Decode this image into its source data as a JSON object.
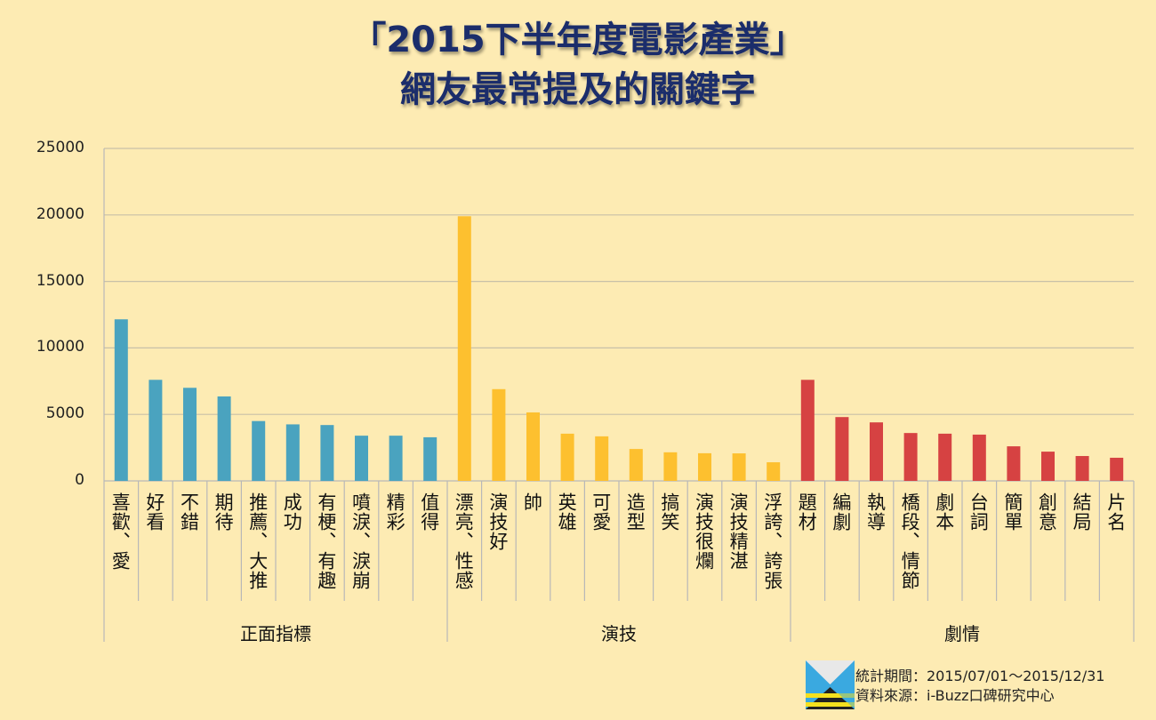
{
  "title_line1": "「2015下半年度電影產業」",
  "title_line2": "網友最常提及的關鍵字",
  "chart_data": {
    "type": "bar",
    "title": "「2015下半年度電影產業」網友最常提及的關鍵字",
    "ylim": [
      0,
      25000
    ],
    "yticks": [
      "0",
      "5000",
      "10000",
      "15000",
      "20000",
      "25000"
    ],
    "grid": true,
    "groups": [
      {
        "name": "正面指標",
        "color": "#4aa3bf",
        "categories": [
          "喜歡、愛",
          "好看",
          "不錯",
          "期待",
          "推薦、大推",
          "成功",
          "有梗、有趣",
          "噴淚、淚崩",
          "精彩",
          "值得"
        ],
        "values": [
          12150,
          7600,
          7000,
          6350,
          4500,
          4250,
          4200,
          3400,
          3400,
          3280
        ]
      },
      {
        "name": "演技",
        "color": "#fdc02f",
        "categories": [
          "漂亮、性感",
          "演技好",
          "帥",
          "英雄",
          "可愛",
          "造型",
          "搞笑",
          "演技很爛",
          "演技精湛",
          "浮誇、誇張"
        ],
        "values": [
          19900,
          6900,
          5150,
          3550,
          3350,
          2400,
          2150,
          2080,
          2070,
          1400
        ]
      },
      {
        "name": "劇情",
        "color": "#d64242",
        "categories": [
          "題材",
          "編劇",
          "執導",
          "橋段、情節",
          "劇本",
          "台詞",
          "簡單",
          "創意",
          "結局",
          "片名"
        ],
        "values": [
          7600,
          4800,
          4400,
          3600,
          3550,
          3480,
          2600,
          2200,
          1870,
          1740
        ]
      }
    ]
  },
  "footer": {
    "period": "統計期間：2015/07/01～2015/12/31",
    "source": "資料來源：i-Buzz口碑研究中心"
  }
}
